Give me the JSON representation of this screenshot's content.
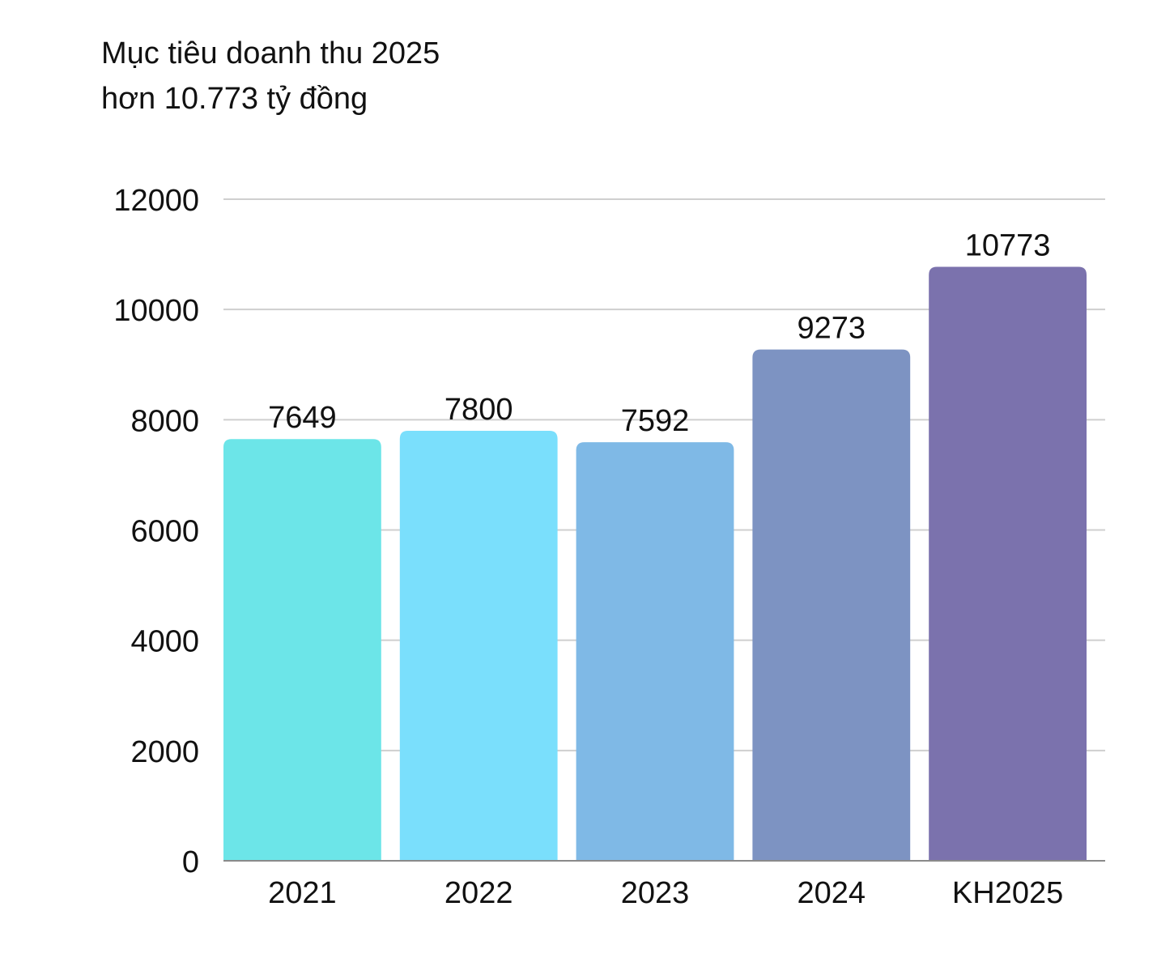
{
  "chart_data": {
    "type": "bar",
    "title": "Mục tiêu doanh thu 2025",
    "subtitle": "hơn 10.773 tỷ đồng",
    "categories": [
      "2021",
      "2022",
      "2023",
      "2024",
      "KH2025"
    ],
    "values": [
      7649,
      7800,
      7592,
      9273,
      10773
    ],
    "value_labels": [
      "7649",
      "7800",
      "7592",
      "9273",
      "10773"
    ],
    "colors": [
      "#6ce5e8",
      "#7adffc",
      "#7fb9e6",
      "#7d93c2",
      "#7b72ad"
    ],
    "ylim": [
      0,
      12000
    ],
    "yticks": [
      0,
      2000,
      4000,
      6000,
      8000,
      10000,
      12000
    ],
    "ytick_labels": [
      "0",
      "2000",
      "4000",
      "6000",
      "8000",
      "10000",
      "12000"
    ],
    "grid": true,
    "legend": "none"
  }
}
